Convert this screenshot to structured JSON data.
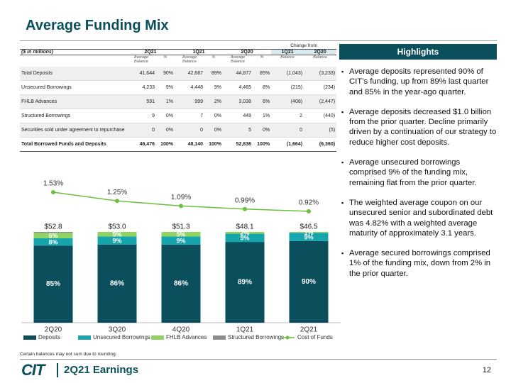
{
  "title": "Average Funding Mix",
  "table": {
    "change_header": "Change from",
    "units": "($ in millions)",
    "groups": [
      "2Q21",
      "1Q21",
      "2Q20"
    ],
    "change_groups": [
      "1Q21",
      "2Q20"
    ],
    "subheaders": [
      "Average Balance",
      "%",
      "Average Balance",
      "%",
      "Average Balance",
      "%",
      "Balance",
      "Balance"
    ],
    "rows": [
      [
        "Total Deposits",
        "41,644",
        "90%",
        "42,687",
        "89%",
        "44,877",
        "85%",
        "(1,043)",
        "(3,233)"
      ],
      [
        "Unsecured Borrowings",
        "4,233",
        "9%",
        "4,448",
        "9%",
        "4,465",
        "8%",
        "(215)",
        "(234)"
      ],
      [
        "FHLB Advances",
        "591",
        "1%",
        "999",
        "2%",
        "3,038",
        "6%",
        "(408)",
        "(2,447)"
      ],
      [
        "Structured Borrowings",
        "9",
        "0%",
        "7",
        "0%",
        "449",
        "1%",
        "2",
        "(440)"
      ],
      [
        "Securities sold under agreement to repurchase",
        "0",
        "0%",
        "0",
        "0%",
        "5",
        "0%",
        "0",
        "(5)"
      ],
      [
        "Total Borrowed Funds and Deposits",
        "46,476",
        "100%",
        "48,140",
        "100%",
        "52,836",
        "100%",
        "(1,664)",
        "(6,360)"
      ]
    ]
  },
  "chart_data": {
    "type": "bar",
    "stacked": true,
    "legend": "bottom",
    "categories": [
      "2Q20",
      "3Q20",
      "4Q20",
      "1Q21",
      "2Q21"
    ],
    "series": [
      {
        "name": "Deposits",
        "color": "#0b4f5c",
        "values": [
          85,
          86,
          86,
          89,
          90
        ],
        "value_labels": [
          "85%",
          "86%",
          "86%",
          "89%",
          "90%"
        ]
      },
      {
        "name": "Unsecured Borrowings",
        "color": "#16a4ad",
        "values": [
          8,
          9,
          9,
          9,
          9
        ],
        "value_labels": [
          "8%",
          "9%",
          "9%",
          "9%",
          "9%"
        ]
      },
      {
        "name": "FHLB Advances",
        "color": "#8fd460",
        "values": [
          6,
          5,
          5,
          2,
          1
        ],
        "value_labels": [
          "6%",
          "5%",
          "5%",
          "2%",
          "1%"
        ]
      },
      {
        "name": "Structured Borrowings",
        "color": "#8c8c8c",
        "values": [
          1,
          0,
          0,
          0,
          0
        ]
      },
      {
        "name": "Cost of Funds",
        "type": "line",
        "color": "#6cbf3e",
        "values": [
          1.53,
          1.25,
          1.09,
          0.99,
          0.92
        ],
        "value_labels": [
          "1.53%",
          "1.25%",
          "1.09%",
          "0.99%",
          "0.92%"
        ]
      }
    ],
    "totals": {
      "values": [
        52.8,
        53.0,
        51.3,
        48.1,
        46.5
      ],
      "value_labels": [
        "$52.8",
        "$53.0",
        "$51.3",
        "$48.1",
        "$46.5"
      ]
    }
  },
  "highlights": {
    "title": "Highlights",
    "bullets": [
      "Average deposits represented 90% of CIT’s funding, up from 89% last quarter and 85% in the year-ago quarter.",
      "Average deposits decreased $1.0 billion from the prior quarter. Decline primarily driven by a continuation of our strategy to reduce higher cost deposits.",
      "Average unsecured borrowings comprised 9% of the funding mix, remaining flat from the prior quarter.",
      "The weighted average coupon on our unsecured senior and subordinated debt was 4.82% with a weighted average maturity of approximately 3.1 years.",
      "Average secured borrowings comprised 1% of the funding mix, down from 2% in the prior quarter."
    ]
  },
  "footer": {
    "note": "Certain balances may not sum due to rounding.",
    "logo": "CIT",
    "label": "2Q21 Earnings",
    "page": "12"
  }
}
